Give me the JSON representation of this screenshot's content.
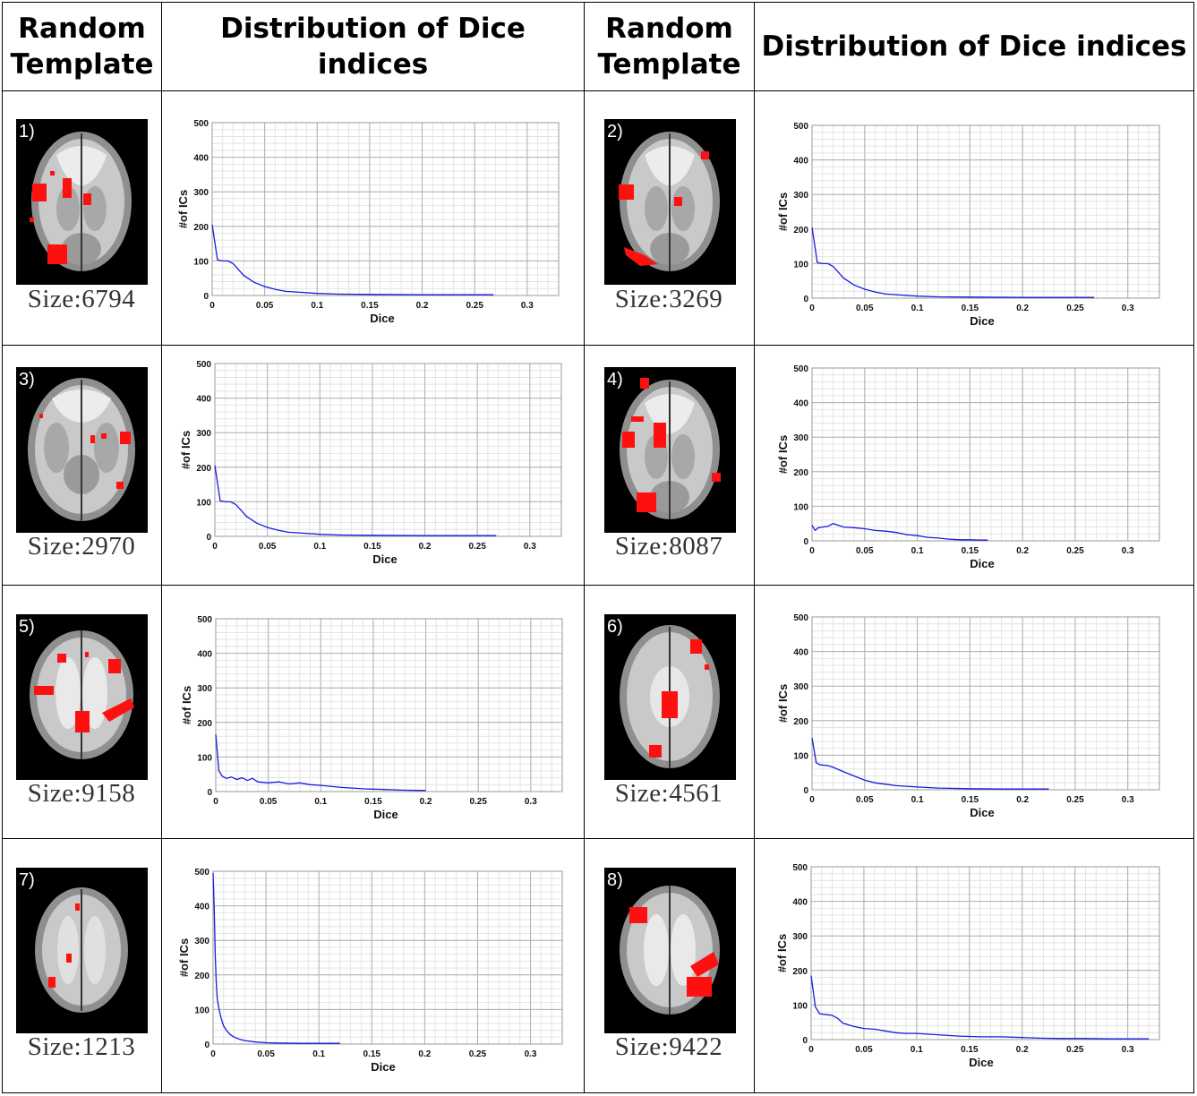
{
  "headers": {
    "template": "Random Template",
    "distribution": "Distribution of Dice indices"
  },
  "colors": {
    "brain_bg": "#000000",
    "activation": "#ff1010",
    "line": "#1a1adf",
    "grid_major": "#b0b0b0",
    "grid_minor": "#e4e4e4"
  },
  "panels": [
    {
      "label": "1)",
      "size_text": "Size:6794"
    },
    {
      "label": "2)",
      "size_text": "Size:3269"
    },
    {
      "label": "3)",
      "size_text": "Size:2970"
    },
    {
      "label": "4)",
      "size_text": "Size:8087"
    },
    {
      "label": "5)",
      "size_text": "Size:9158"
    },
    {
      "label": "6)",
      "size_text": "Size:4561"
    },
    {
      "label": "7)",
      "size_text": "Size:1213"
    },
    {
      "label": "8)",
      "size_text": "Size:9422"
    }
  ],
  "chart_data": [
    {
      "type": "line",
      "xlabel": "Dice",
      "ylabel": "#of ICs",
      "xlim": [
        0,
        0.33
      ],
      "ylim": [
        0,
        500
      ],
      "xticks": [
        "0",
        "0.05",
        "0.1",
        "0.15",
        "0.2",
        "0.25",
        "0.3"
      ],
      "yticks": [
        "0",
        "100",
        "200",
        "300",
        "400",
        "500"
      ],
      "grid": true,
      "x": [
        0,
        0.005,
        0.01,
        0.015,
        0.02,
        0.03,
        0.04,
        0.05,
        0.06,
        0.07,
        0.08,
        0.1,
        0.12,
        0.15,
        0.2,
        0.25,
        0.268
      ],
      "y": [
        205,
        103,
        100,
        100,
        92,
        58,
        38,
        26,
        18,
        12,
        10,
        6,
        4,
        3,
        2,
        2,
        2
      ]
    },
    {
      "type": "line",
      "xlabel": "Dice",
      "ylabel": "#of ICs",
      "xlim": [
        0,
        0.33
      ],
      "ylim": [
        0,
        500
      ],
      "xticks": [
        "0",
        "0.05",
        "0.1",
        "0.15",
        "0.2",
        "0.25",
        "0.3"
      ],
      "yticks": [
        "0",
        "100",
        "200",
        "300",
        "400",
        "500"
      ],
      "grid": true,
      "x": [
        0,
        0.005,
        0.01,
        0.015,
        0.02,
        0.03,
        0.04,
        0.05,
        0.06,
        0.07,
        0.08,
        0.1,
        0.12,
        0.15,
        0.2,
        0.25,
        0.268
      ],
      "y": [
        205,
        103,
        100,
        100,
        92,
        58,
        38,
        26,
        18,
        12,
        10,
        6,
        4,
        3,
        2,
        2,
        2
      ]
    },
    {
      "type": "line",
      "xlabel": "Dice",
      "ylabel": "#of ICs",
      "xlim": [
        0,
        0.33
      ],
      "ylim": [
        0,
        500
      ],
      "xticks": [
        "0",
        "0.05",
        "0.1",
        "0.15",
        "0.2",
        "0.25",
        "0.3"
      ],
      "yticks": [
        "0",
        "100",
        "200",
        "300",
        "400",
        "500"
      ],
      "grid": true,
      "x": [
        0,
        0.005,
        0.01,
        0.015,
        0.02,
        0.03,
        0.04,
        0.05,
        0.06,
        0.07,
        0.08,
        0.1,
        0.12,
        0.15,
        0.2,
        0.25,
        0.268
      ],
      "y": [
        205,
        103,
        100,
        100,
        92,
        58,
        38,
        26,
        18,
        12,
        10,
        6,
        4,
        3,
        2,
        2,
        2
      ]
    },
    {
      "type": "line",
      "xlabel": "Dice",
      "ylabel": "#of ICs",
      "xlim": [
        0,
        0.33
      ],
      "ylim": [
        0,
        500
      ],
      "xticks": [
        "0",
        "0.05",
        "0.1",
        "0.15",
        "0.2",
        "0.25",
        "0.3"
      ],
      "yticks": [
        "0",
        "100",
        "200",
        "300",
        "400",
        "500"
      ],
      "grid": true,
      "x": [
        0,
        0.003,
        0.006,
        0.01,
        0.015,
        0.02,
        0.025,
        0.03,
        0.04,
        0.05,
        0.06,
        0.07,
        0.08,
        0.09,
        0.1,
        0.11,
        0.12,
        0.13,
        0.14,
        0.15,
        0.16,
        0.167
      ],
      "y": [
        45,
        30,
        38,
        40,
        42,
        50,
        45,
        40,
        38,
        35,
        30,
        28,
        24,
        18,
        15,
        10,
        8,
        5,
        3,
        3,
        2,
        2
      ]
    },
    {
      "type": "line",
      "xlabel": "Dice",
      "ylabel": "#of ICs",
      "xlim": [
        0,
        0.33
      ],
      "ylim": [
        0,
        500
      ],
      "xticks": [
        "0",
        "0.05",
        "0.1",
        "0.15",
        "0.2",
        "0.25",
        "0.3"
      ],
      "yticks": [
        "0",
        "100",
        "200",
        "300",
        "400",
        "500"
      ],
      "grid": true,
      "x": [
        0,
        0.003,
        0.006,
        0.01,
        0.015,
        0.02,
        0.025,
        0.03,
        0.035,
        0.04,
        0.05,
        0.06,
        0.07,
        0.08,
        0.09,
        0.1,
        0.12,
        0.14,
        0.16,
        0.18,
        0.2
      ],
      "y": [
        165,
        60,
        45,
        38,
        42,
        35,
        40,
        32,
        38,
        28,
        25,
        28,
        22,
        25,
        20,
        18,
        12,
        8,
        6,
        4,
        3
      ]
    },
    {
      "type": "line",
      "xlabel": "Dice",
      "ylabel": "#of ICs",
      "xlim": [
        0,
        0.33
      ],
      "ylim": [
        0,
        500
      ],
      "xticks": [
        "0",
        "0.05",
        "0.1",
        "0.15",
        "0.2",
        "0.25",
        "0.3"
      ],
      "yticks": [
        "0",
        "100",
        "200",
        "300",
        "400",
        "500"
      ],
      "grid": true,
      "x": [
        0,
        0.004,
        0.008,
        0.015,
        0.02,
        0.03,
        0.04,
        0.05,
        0.06,
        0.07,
        0.08,
        0.09,
        0.1,
        0.12,
        0.15,
        0.18,
        0.2,
        0.225
      ],
      "y": [
        150,
        78,
        72,
        70,
        65,
        52,
        40,
        28,
        20,
        16,
        12,
        10,
        8,
        5,
        3,
        2,
        2,
        2
      ]
    },
    {
      "type": "line",
      "xlabel": "Dice",
      "ylabel": "#of ICs",
      "xlim": [
        0,
        0.33
      ],
      "ylim": [
        0,
        500
      ],
      "xticks": [
        "0",
        "0.05",
        "0.1",
        "0.15",
        "0.2",
        "0.25",
        "0.3"
      ],
      "yticks": [
        "0",
        "100",
        "200",
        "300",
        "400",
        "500"
      ],
      "grid": true,
      "x": [
        0,
        0.001,
        0.002,
        0.003,
        0.004,
        0.006,
        0.008,
        0.01,
        0.013,
        0.016,
        0.02,
        0.025,
        0.03,
        0.04,
        0.05,
        0.06,
        0.08,
        0.1,
        0.12
      ],
      "y": [
        495,
        400,
        260,
        180,
        130,
        95,
        70,
        52,
        38,
        28,
        20,
        14,
        10,
        6,
        4,
        3,
        2,
        2,
        2
      ]
    },
    {
      "type": "line",
      "xlabel": "Dice",
      "ylabel": "#of ICs",
      "xlim": [
        0,
        0.33
      ],
      "ylim": [
        0,
        500
      ],
      "xticks": [
        "0",
        "0.05",
        "0.1",
        "0.15",
        "0.2",
        "0.25",
        "0.3"
      ],
      "yticks": [
        "0",
        "100",
        "200",
        "300",
        "400",
        "500"
      ],
      "grid": true,
      "x": [
        0,
        0.004,
        0.008,
        0.015,
        0.02,
        0.025,
        0.03,
        0.04,
        0.05,
        0.06,
        0.07,
        0.08,
        0.09,
        0.1,
        0.12,
        0.14,
        0.16,
        0.18,
        0.2,
        0.22,
        0.24,
        0.26,
        0.28,
        0.3,
        0.32
      ],
      "y": [
        185,
        95,
        75,
        72,
        70,
        62,
        48,
        38,
        32,
        30,
        25,
        20,
        18,
        18,
        14,
        10,
        8,
        8,
        6,
        4,
        3,
        3,
        2,
        2,
        2
      ]
    }
  ]
}
